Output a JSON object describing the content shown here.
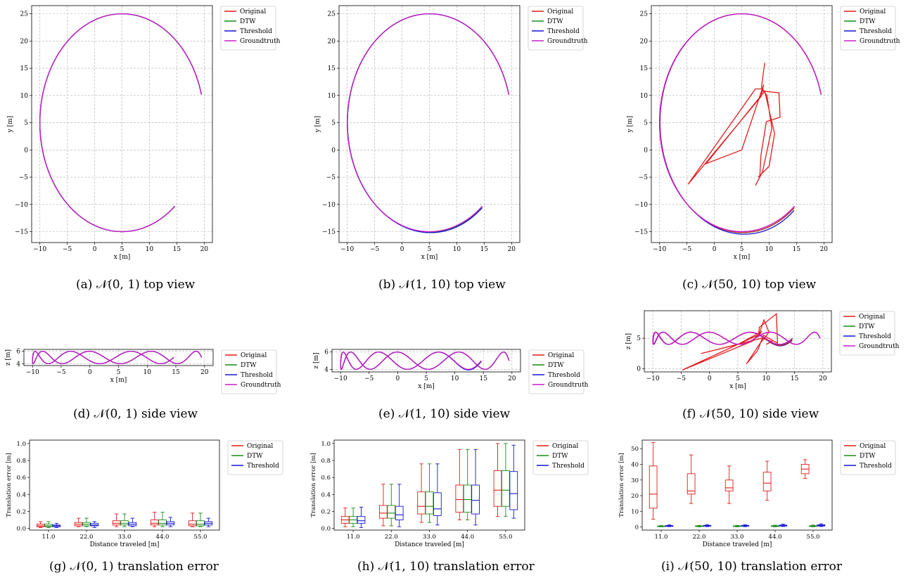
{
  "legend_labels": [
    "Original",
    "DTW",
    "Threshold",
    "Groundtruth"
  ],
  "colors": {
    "Original": "#e41a1c",
    "DTW": "#1a8a1a",
    "Threshold": "#1515d4",
    "Groundtruth": "#c81ec8"
  },
  "chart_data": [
    {
      "id": "a",
      "type": "line",
      "view": "top",
      "caption": "(a) 𝒩(0, 1) top view",
      "xlabel": "x [m]",
      "ylabel": "y [m]",
      "xlim": [
        -11.5,
        21.5
      ],
      "ylim": [
        -17,
        26.5
      ],
      "xticks": [
        -10,
        -5,
        0,
        5,
        10,
        15,
        20
      ],
      "yticks": [
        -15,
        -10,
        -5,
        0,
        5,
        10,
        15,
        20,
        25
      ],
      "legend": [
        "Original",
        "DTW",
        "Threshold",
        "Groundtruth"
      ],
      "legend_position": "outside-right",
      "trajectory": {
        "center": [
          5,
          5
        ],
        "radii": [
          15,
          20
        ],
        "start_angle_deg": 15,
        "end_angle_deg": 310,
        "z_mean": 5,
        "z_amplitude": 1,
        "z_cycles": 7
      },
      "deviation": {
        "Threshold": 0,
        "DTW": 0,
        "Original": 0
      }
    },
    {
      "id": "b",
      "type": "line",
      "view": "top",
      "caption": "(b) 𝒩(1, 10) top view",
      "xlabel": "x [m]",
      "ylabel": "y [m]",
      "xlim": [
        -11.5,
        21.5
      ],
      "ylim": [
        -17,
        26.5
      ],
      "xticks": [
        -10,
        -5,
        0,
        5,
        10,
        15,
        20
      ],
      "yticks": [
        -15,
        -10,
        -5,
        0,
        5,
        10,
        15,
        20,
        25
      ],
      "legend": [
        "Original",
        "DTW",
        "Threshold",
        "Groundtruth"
      ],
      "legend_position": "outside-right",
      "deviation": {
        "Threshold": 0.4,
        "DTW": 0.2,
        "Original": 0.3
      }
    },
    {
      "id": "c",
      "type": "line",
      "view": "top",
      "caption": "(c) 𝒩(50, 10) top view",
      "xlabel": "x [m]",
      "ylabel": "y [m]",
      "xlim": [
        -11.5,
        21.5
      ],
      "ylim": [
        -17,
        26.5
      ],
      "xticks": [
        -10,
        -5,
        0,
        5,
        10,
        15,
        20
      ],
      "yticks": [
        -15,
        -10,
        -5,
        0,
        5,
        10,
        15,
        20,
        25
      ],
      "legend": [
        "Original",
        "DTW",
        "Threshold",
        "Groundtruth"
      ],
      "legend_position": "outside-right",
      "deviation": {
        "Threshold": 1.0,
        "DTW": 0.5
      },
      "original_outlier_path": [
        [
          9.2,
          16
        ],
        [
          8.6,
          11.5
        ],
        [
          8.8,
          10.8
        ],
        [
          11.8,
          10.5
        ],
        [
          12,
          6
        ],
        [
          9.5,
          5.2
        ],
        [
          8.5,
          -1
        ],
        [
          8.3,
          -5
        ],
        [
          7.5,
          -6.5
        ],
        [
          8.8,
          -4
        ],
        [
          10.5,
          4
        ],
        [
          9.6,
          10
        ],
        [
          8.8,
          11.2
        ],
        [
          7.5,
          11.2
        ],
        [
          -4.8,
          -6.3
        ],
        [
          8.5,
          9.8
        ],
        [
          9,
          12
        ],
        [
          5,
          0
        ],
        [
          -1.5,
          -2.5
        ],
        [
          9.2,
          10.8
        ],
        [
          11,
          3
        ],
        [
          10,
          -3
        ],
        [
          8,
          -5
        ]
      ]
    },
    {
      "id": "d",
      "type": "line",
      "view": "side",
      "caption": "(d) 𝒩(0, 1) side view",
      "xlabel": "x [m]",
      "ylabel": "z [m]",
      "xlim": [
        -11.5,
        21.5
      ],
      "ylim": [
        3.7,
        6.3
      ],
      "xticks": [
        -10,
        -5,
        0,
        5,
        10,
        15,
        20
      ],
      "yticks": [
        4,
        6
      ],
      "legend": [
        "Original",
        "DTW",
        "Threshold",
        "Groundtruth"
      ],
      "legend_position": "outside-right",
      "deviation": {
        "Threshold": 0,
        "DTW": 0,
        "Original": 0
      }
    },
    {
      "id": "e",
      "type": "line",
      "view": "side",
      "caption": "(e) 𝒩(1, 10) side view",
      "xlabel": "x [m]",
      "ylabel": "z [m]",
      "xlim": [
        -11.5,
        21.5
      ],
      "ylim": [
        3.7,
        6.3
      ],
      "xticks": [
        -10,
        -5,
        0,
        5,
        10,
        15,
        20
      ],
      "yticks": [
        4,
        6
      ],
      "legend": [
        "Original",
        "DTW",
        "Threshold",
        "Groundtruth"
      ],
      "legend_position": "outside-right",
      "deviation": {
        "Threshold": 0.25,
        "DTW": 0.1,
        "Original": 0.15
      }
    },
    {
      "id": "f",
      "type": "line",
      "view": "side",
      "caption": "(f) 𝒩(50, 10) side view",
      "xlabel": "x [m]",
      "ylabel": "z [m]",
      "xlim": [
        -11.5,
        21.5
      ],
      "ylim": [
        -0.5,
        9.5
      ],
      "xticks": [
        -10,
        -5,
        0,
        5,
        10,
        15,
        20
      ],
      "yticks": [
        0,
        5
      ],
      "legend": [
        "Original",
        "DTW",
        "Threshold",
        "Groundtruth"
      ],
      "legend_position": "outside-right",
      "deviation": {
        "Threshold": 0.8,
        "DTW": 0.4
      },
      "original_outlier_path": [
        [
          9.2,
          6.2
        ],
        [
          8.6,
          5.2
        ],
        [
          8.8,
          6.8
        ],
        [
          11.8,
          9
        ],
        [
          12,
          4.2
        ],
        [
          9.5,
          5.5
        ],
        [
          8.5,
          3
        ],
        [
          6.5,
          0.8
        ],
        [
          8.8,
          4
        ],
        [
          10.5,
          6
        ],
        [
          9.6,
          8
        ],
        [
          8.8,
          5.8
        ],
        [
          7.5,
          4.5
        ],
        [
          -4.8,
          -0.2
        ],
        [
          8.5,
          5.5
        ],
        [
          9,
          6
        ],
        [
          5,
          4
        ],
        [
          -1.5,
          2.5
        ],
        [
          9.2,
          5
        ],
        [
          11,
          4.5
        ],
        [
          10,
          4
        ]
      ]
    },
    {
      "id": "g",
      "type": "box",
      "caption": "(g) 𝒩(0, 1) translation error",
      "xlabel": "Distance traveled [m]",
      "ylabel": "Translation error [m]",
      "ylim": [
        -0.02,
        1.04
      ],
      "yticks": [
        0.0,
        0.2,
        0.4,
        0.6,
        0.8,
        1.0
      ],
      "ytick_labels": [
        "0.0",
        "0.2",
        "0.4",
        "0.6",
        "0.8",
        "1.0"
      ],
      "categories": [
        "11.0",
        "22.0",
        "33.0",
        "44.0",
        "55.0"
      ],
      "legend": [
        "Original",
        "DTW",
        "Threshold"
      ],
      "legend_position": "outside-right",
      "series": [
        {
          "name": "Original",
          "boxes": [
            [
              0.01,
              0.02,
              0.03,
              0.05,
              0.08
            ],
            [
              0.02,
              0.03,
              0.05,
              0.07,
              0.12
            ],
            [
              0.02,
              0.04,
              0.06,
              0.09,
              0.17
            ],
            [
              0.02,
              0.04,
              0.06,
              0.1,
              0.19
            ],
            [
              0.02,
              0.03,
              0.05,
              0.09,
              0.18
            ]
          ]
        },
        {
          "name": "DTW",
          "boxes": [
            [
              0.01,
              0.02,
              0.03,
              0.05,
              0.08
            ],
            [
              0.02,
              0.03,
              0.05,
              0.07,
              0.12
            ],
            [
              0.02,
              0.04,
              0.06,
              0.09,
              0.17
            ],
            [
              0.02,
              0.04,
              0.06,
              0.1,
              0.19
            ],
            [
              0.02,
              0.03,
              0.05,
              0.09,
              0.18
            ]
          ]
        },
        {
          "name": "Threshold",
          "boxes": [
            [
              0.01,
              0.02,
              0.03,
              0.04,
              0.06
            ],
            [
              0.01,
              0.03,
              0.04,
              0.06,
              0.08
            ],
            [
              0.02,
              0.03,
              0.05,
              0.07,
              0.12
            ],
            [
              0.02,
              0.04,
              0.06,
              0.08,
              0.13
            ],
            [
              0.02,
              0.04,
              0.06,
              0.08,
              0.12
            ]
          ]
        }
      ]
    },
    {
      "id": "h",
      "type": "box",
      "caption": "(h) 𝒩(1, 10) translation error",
      "xlabel": "Distance traveled [m]",
      "ylabel": "Translation error [m]",
      "ylim": [
        -0.02,
        1.04
      ],
      "yticks": [
        0.0,
        0.2,
        0.4,
        0.6,
        0.8,
        1.0
      ],
      "ytick_labels": [
        "0.0",
        "0.2",
        "0.4",
        "0.6",
        "0.8",
        "1.0"
      ],
      "categories": [
        "11.0",
        "22.0",
        "33.0",
        "44.0",
        "55.0"
      ],
      "legend": [
        "Original",
        "DTW",
        "Threshold"
      ],
      "legend_position": "outside-right",
      "series": [
        {
          "name": "Original",
          "boxes": [
            [
              0.02,
              0.06,
              0.1,
              0.14,
              0.24
            ],
            [
              0.03,
              0.12,
              0.18,
              0.27,
              0.52
            ],
            [
              0.07,
              0.17,
              0.26,
              0.43,
              0.76
            ],
            [
              0.1,
              0.19,
              0.34,
              0.51,
              0.93
            ],
            [
              0.14,
              0.26,
              0.45,
              0.68,
              1.0
            ]
          ]
        },
        {
          "name": "DTW",
          "boxes": [
            [
              0.02,
              0.06,
              0.1,
              0.14,
              0.24
            ],
            [
              0.03,
              0.12,
              0.18,
              0.27,
              0.52
            ],
            [
              0.07,
              0.17,
              0.26,
              0.43,
              0.76
            ],
            [
              0.1,
              0.19,
              0.34,
              0.51,
              0.93
            ],
            [
              0.14,
              0.26,
              0.45,
              0.68,
              1.0
            ]
          ]
        },
        {
          "name": "Threshold",
          "boxes": [
            [
              0.01,
              0.06,
              0.09,
              0.14,
              0.25
            ],
            [
              0.02,
              0.1,
              0.16,
              0.26,
              0.52
            ],
            [
              0.04,
              0.15,
              0.23,
              0.42,
              0.76
            ],
            [
              0.04,
              0.17,
              0.33,
              0.51,
              0.93
            ],
            [
              0.12,
              0.22,
              0.41,
              0.67,
              0.98
            ]
          ]
        }
      ]
    },
    {
      "id": "i",
      "type": "box",
      "caption": "(i) 𝒩(50, 10) translation error",
      "xlabel": "Distance traveled [m]",
      "ylabel": "Translation error [m]",
      "ylim": [
        -2,
        55.5
      ],
      "yticks": [
        0,
        10,
        20,
        30,
        40,
        50
      ],
      "ytick_labels": [
        "0",
        "10",
        "20",
        "30",
        "40",
        "50"
      ],
      "categories": [
        "11.0",
        "22.0",
        "33.0",
        "44.0",
        "55.0"
      ],
      "legend": [
        "Original",
        "DTW",
        "Threshold"
      ],
      "legend_position": "outside-right",
      "series": [
        {
          "name": "Original",
          "boxes": [
            [
              5,
              12,
              21,
              39,
              54
            ],
            [
              15,
              21,
              23,
              34,
              46
            ],
            [
              15,
              23,
              25,
              30,
              39
            ],
            [
              17,
              23,
              28,
              35,
              42
            ],
            [
              31,
              34,
              37,
              40,
              43
            ]
          ]
        },
        {
          "name": "DTW",
          "boxes": [
            [
              0.1,
              0.2,
              0.4,
              0.6,
              0.9
            ],
            [
              0.1,
              0.3,
              0.5,
              0.7,
              1.0
            ],
            [
              0.1,
              0.3,
              0.5,
              0.7,
              1.0
            ],
            [
              0.1,
              0.3,
              0.5,
              0.8,
              1.1
            ],
            [
              0.1,
              0.3,
              0.5,
              0.8,
              1.2
            ]
          ]
        },
        {
          "name": "Threshold",
          "boxes": [
            [
              0.2,
              0.4,
              0.6,
              0.9,
              1.3
            ],
            [
              0.2,
              0.5,
              0.7,
              1.0,
              1.5
            ],
            [
              0.2,
              0.5,
              0.7,
              1.0,
              1.5
            ],
            [
              0.3,
              0.6,
              0.9,
              1.2,
              1.8
            ],
            [
              0.3,
              0.6,
              1.0,
              1.4,
              2.0
            ]
          ]
        }
      ]
    }
  ]
}
